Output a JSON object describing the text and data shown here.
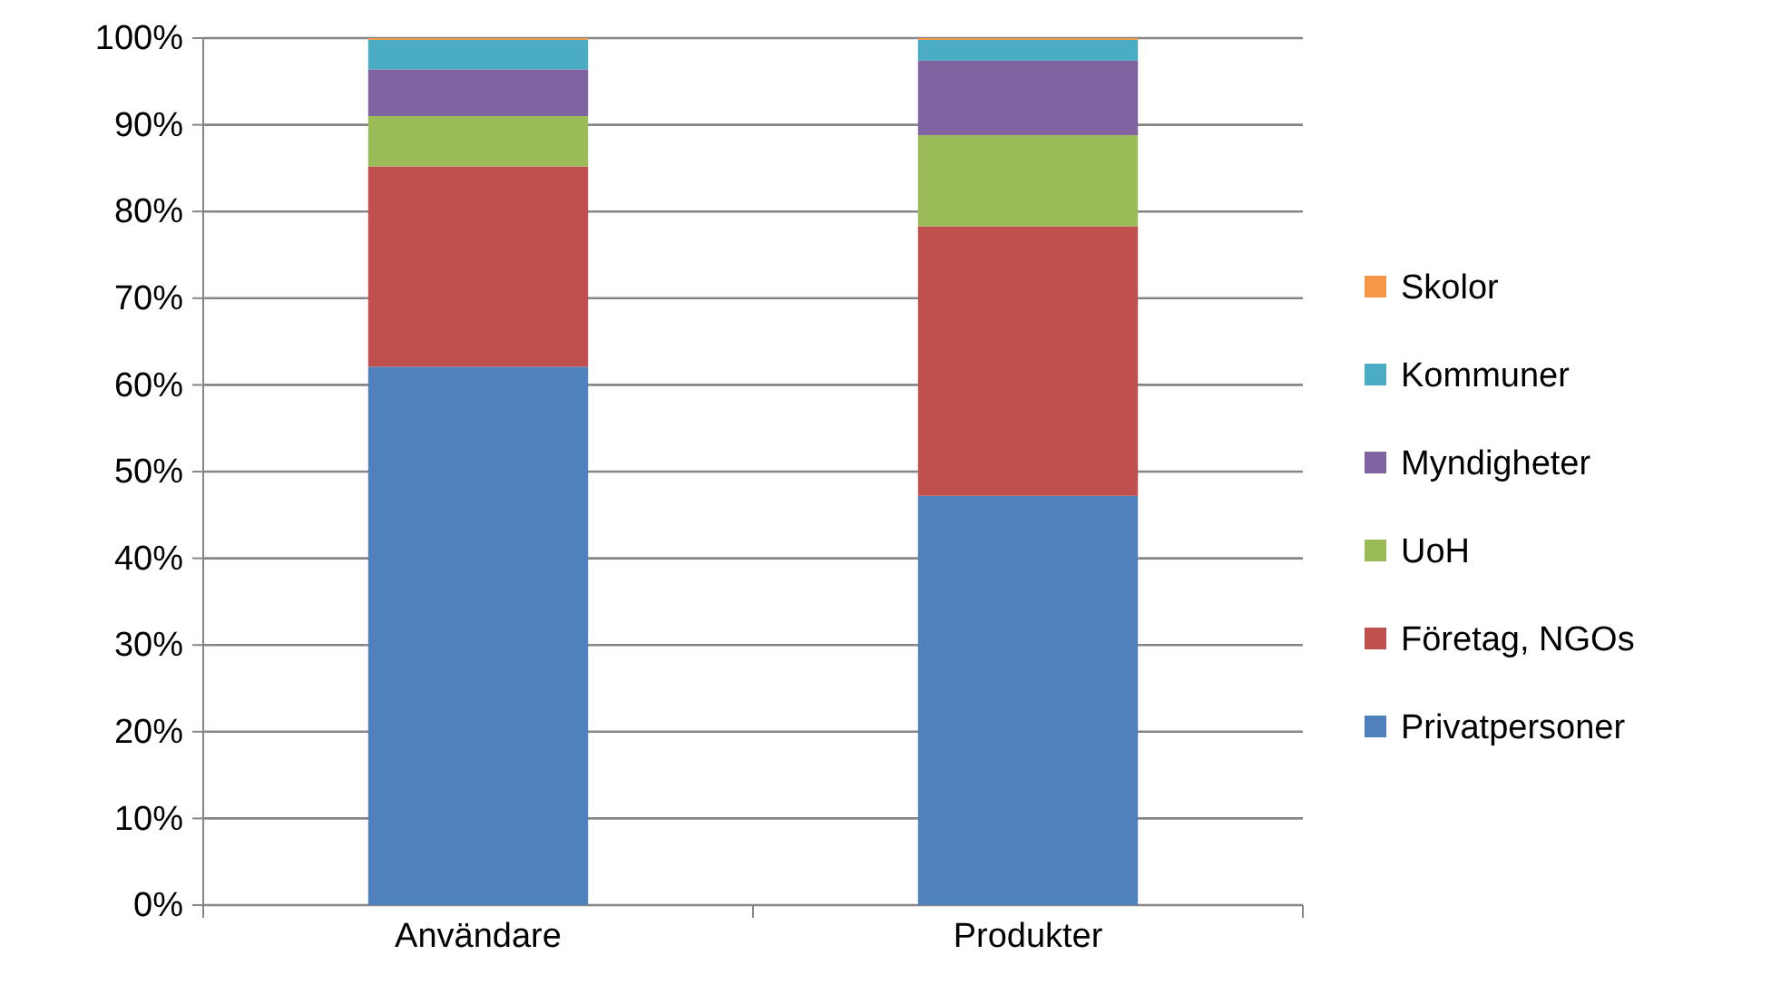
{
  "chart_data": {
    "type": "bar",
    "stacked": true,
    "categories": [
      "Användare",
      "Produkter"
    ],
    "series": [
      {
        "name": "Privatpersoner",
        "color": "#4f81bd",
        "values": [
          62.1,
          47.2
        ]
      },
      {
        "name": "Företag, NGOs",
        "color": "#c0504d",
        "values": [
          23.1,
          31.1
        ]
      },
      {
        "name": "UoH",
        "color": "#9bbb59",
        "values": [
          5.8,
          10.5
        ]
      },
      {
        "name": "Myndigheter",
        "color": "#8064a2",
        "values": [
          5.4,
          8.6
        ]
      },
      {
        "name": "Kommuner",
        "color": "#4bacc6",
        "values": [
          3.4,
          2.4
        ]
      },
      {
        "name": "Skolor",
        "color": "#f79646",
        "values": [
          0.2,
          0.2
        ]
      }
    ],
    "ylim": [
      0,
      100
    ],
    "yticks": [
      {
        "value": 0,
        "label": "0%"
      },
      {
        "value": 10,
        "label": "10%"
      },
      {
        "value": 20,
        "label": "20%"
      },
      {
        "value": 30,
        "label": "30%"
      },
      {
        "value": 40,
        "label": "40%"
      },
      {
        "value": 50,
        "label": "50%"
      },
      {
        "value": 60,
        "label": "60%"
      },
      {
        "value": 70,
        "label": "70%"
      },
      {
        "value": 80,
        "label": "80%"
      },
      {
        "value": 90,
        "label": "90%"
      },
      {
        "value": 100,
        "label": "100%"
      }
    ],
    "grid": "y",
    "legend": "right"
  }
}
